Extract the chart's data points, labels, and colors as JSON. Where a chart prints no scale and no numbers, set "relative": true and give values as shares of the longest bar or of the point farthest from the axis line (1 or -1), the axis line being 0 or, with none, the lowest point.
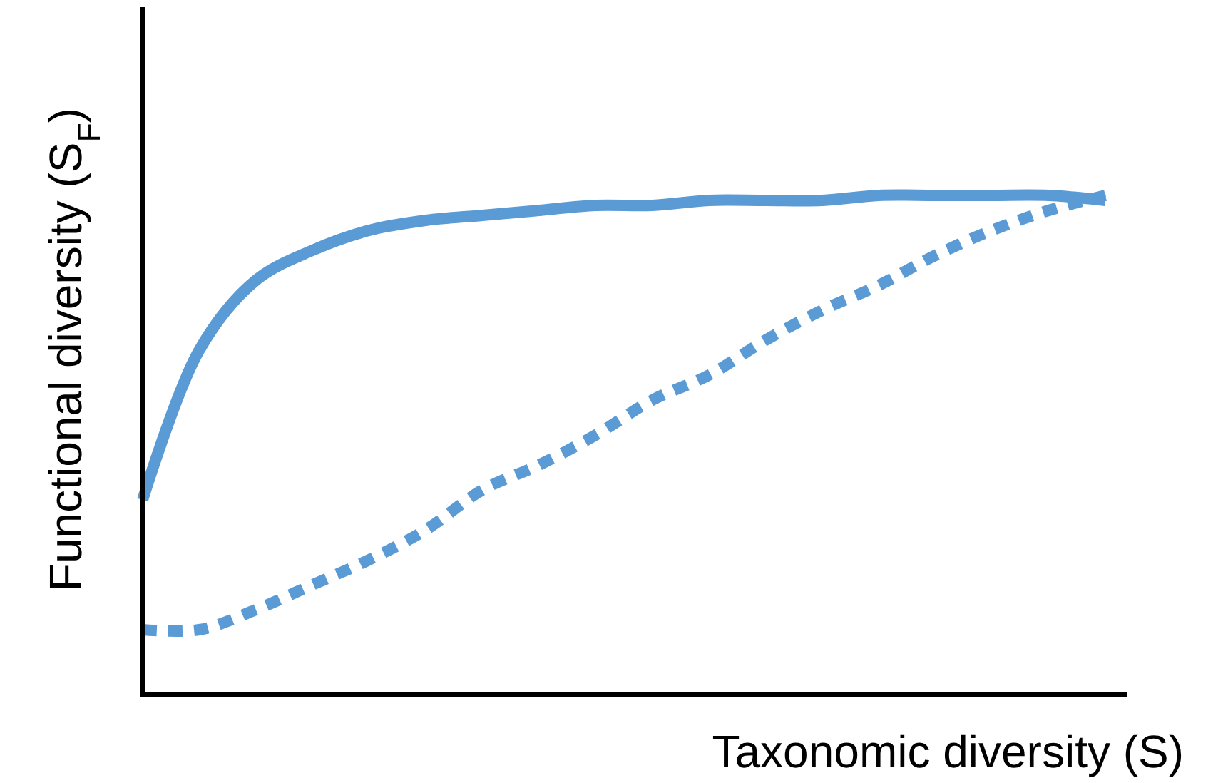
{
  "chart_data": {
    "type": "line",
    "relative": true,
    "xlabel": "Taxonomic diversity (S)",
    "ylabel": "Functional diversity (S$_{F}$)",
    "categories": [
      null,
      null,
      null,
      null,
      null,
      null,
      null,
      null,
      null,
      null,
      null,
      null,
      null,
      null,
      null,
      null,
      null,
      null
    ],
    "series": [
      {
        "color": "#5b9bd5",
        "line_style": "solid",
        "values": [
          0.39,
          0.69,
          0.83,
          0.89,
          0.93,
          0.95,
          0.96,
          0.97,
          0.98,
          0.98,
          0.99,
          0.99,
          0.99,
          1,
          1,
          1,
          1,
          0.99
        ]
      },
      {
        "color": "#5b9bd5",
        "line_style": "dotted",
        "values": [
          0.13,
          0.13,
          0.17,
          0.22,
          0.27,
          0.33,
          0.41,
          0.46,
          0.52,
          0.59,
          0.64,
          0.71,
          0.77,
          0.82,
          0.88,
          0.93,
          0.97,
          1
        ]
      }
    ],
    "marker": "none"
  }
}
